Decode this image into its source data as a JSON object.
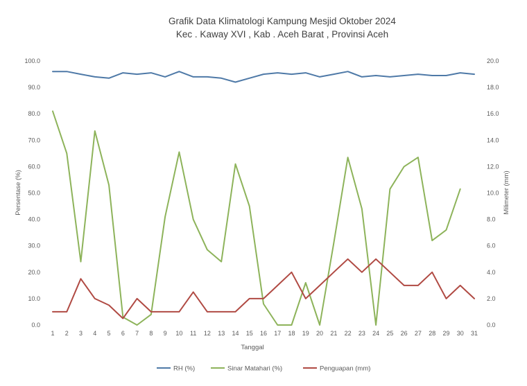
{
  "chart_data": {
    "type": "line",
    "title_lines": [
      "Grafik Data Klimatologi Kampung Mesjid Oktober 2024",
      "Kec . Kaway XVI , Kab . Aceh Barat , Provinsi  Aceh"
    ],
    "xlabel": "Tanggal",
    "ylabel_left": "Persentase (%)",
    "ylabel_right": "Milimeter (mm)",
    "x": [
      1,
      2,
      3,
      4,
      5,
      6,
      7,
      8,
      9,
      10,
      11,
      12,
      13,
      14,
      15,
      16,
      17,
      18,
      19,
      20,
      21,
      22,
      23,
      24,
      25,
      26,
      27,
      28,
      29,
      30,
      31
    ],
    "x_tick_labels": [
      "1",
      "2",
      "3",
      "4",
      "5",
      "6",
      "7",
      "8",
      "9",
      "10",
      "11",
      "12",
      "13",
      "14",
      "15",
      "16",
      "17",
      "18",
      "19",
      "20",
      "21",
      "22",
      "23",
      "24",
      "25",
      "26",
      "27",
      "28",
      "29",
      "30",
      "31"
    ],
    "ylim_left": [
      0,
      100
    ],
    "ylim_right": [
      0,
      20
    ],
    "y_left_ticks": [
      "0.0",
      "10.0",
      "20.0",
      "30.0",
      "40.0",
      "50.0",
      "60.0",
      "70.0",
      "80.0",
      "90.0",
      "100.0"
    ],
    "y_right_ticks": [
      "0.0",
      "2.0",
      "4.0",
      "6.0",
      "8.0",
      "10.0",
      "12.0",
      "14.0",
      "16.0",
      "18.0",
      "20.0"
    ],
    "grid": false,
    "legend_position": "bottom",
    "series": [
      {
        "name": "RH (%)",
        "axis": "left",
        "color": "#4e79a7",
        "values": [
          96,
          96,
          95,
          94,
          93.5,
          95.5,
          95,
          95.5,
          94,
          96,
          94,
          94,
          93.5,
          92,
          93.5,
          95,
          95.5,
          95,
          95.5,
          94,
          95,
          96,
          94,
          94.5,
          94,
          94.5,
          95,
          94.5,
          94.5,
          95.5,
          95
        ]
      },
      {
        "name": "Sinar Matahari (%)",
        "axis": "left",
        "color": "#8db35a",
        "values": [
          81,
          65,
          24,
          73.5,
          53,
          3,
          0,
          4,
          41,
          65.5,
          40,
          28.5,
          24,
          61,
          45,
          8,
          0,
          0,
          16,
          0,
          31,
          63.5,
          44,
          0,
          51.5,
          60,
          63.5,
          32,
          36,
          51.5,
          null
        ]
      },
      {
        "name": "Penguapan (mm)",
        "axis": "right",
        "color": "#b04a43",
        "values": [
          1,
          1,
          3.5,
          2,
          1.5,
          0.5,
          2,
          1,
          1,
          1,
          2.5,
          1,
          1,
          1,
          2,
          2,
          3,
          4,
          2,
          3,
          4,
          5,
          4,
          5,
          4,
          3,
          3,
          4,
          2,
          3,
          2
        ]
      }
    ]
  }
}
